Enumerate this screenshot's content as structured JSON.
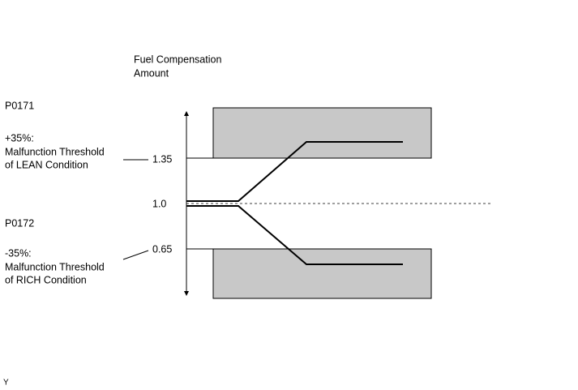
{
  "axis_label": [
    "Fuel Compensation",
    "Amount"
  ],
  "upper": {
    "code": "P0171",
    "percent": "+35%:",
    "description": [
      "Malfunction Threshold",
      "of LEAN Condition"
    ],
    "level": "1.35"
  },
  "center_level": "1.0",
  "lower": {
    "code": "P0172",
    "percent": "-35%:",
    "description": [
      "Malfunction Threshold",
      "of RICH Condition"
    ],
    "level": "0.65"
  },
  "corner_mark": "Y"
}
